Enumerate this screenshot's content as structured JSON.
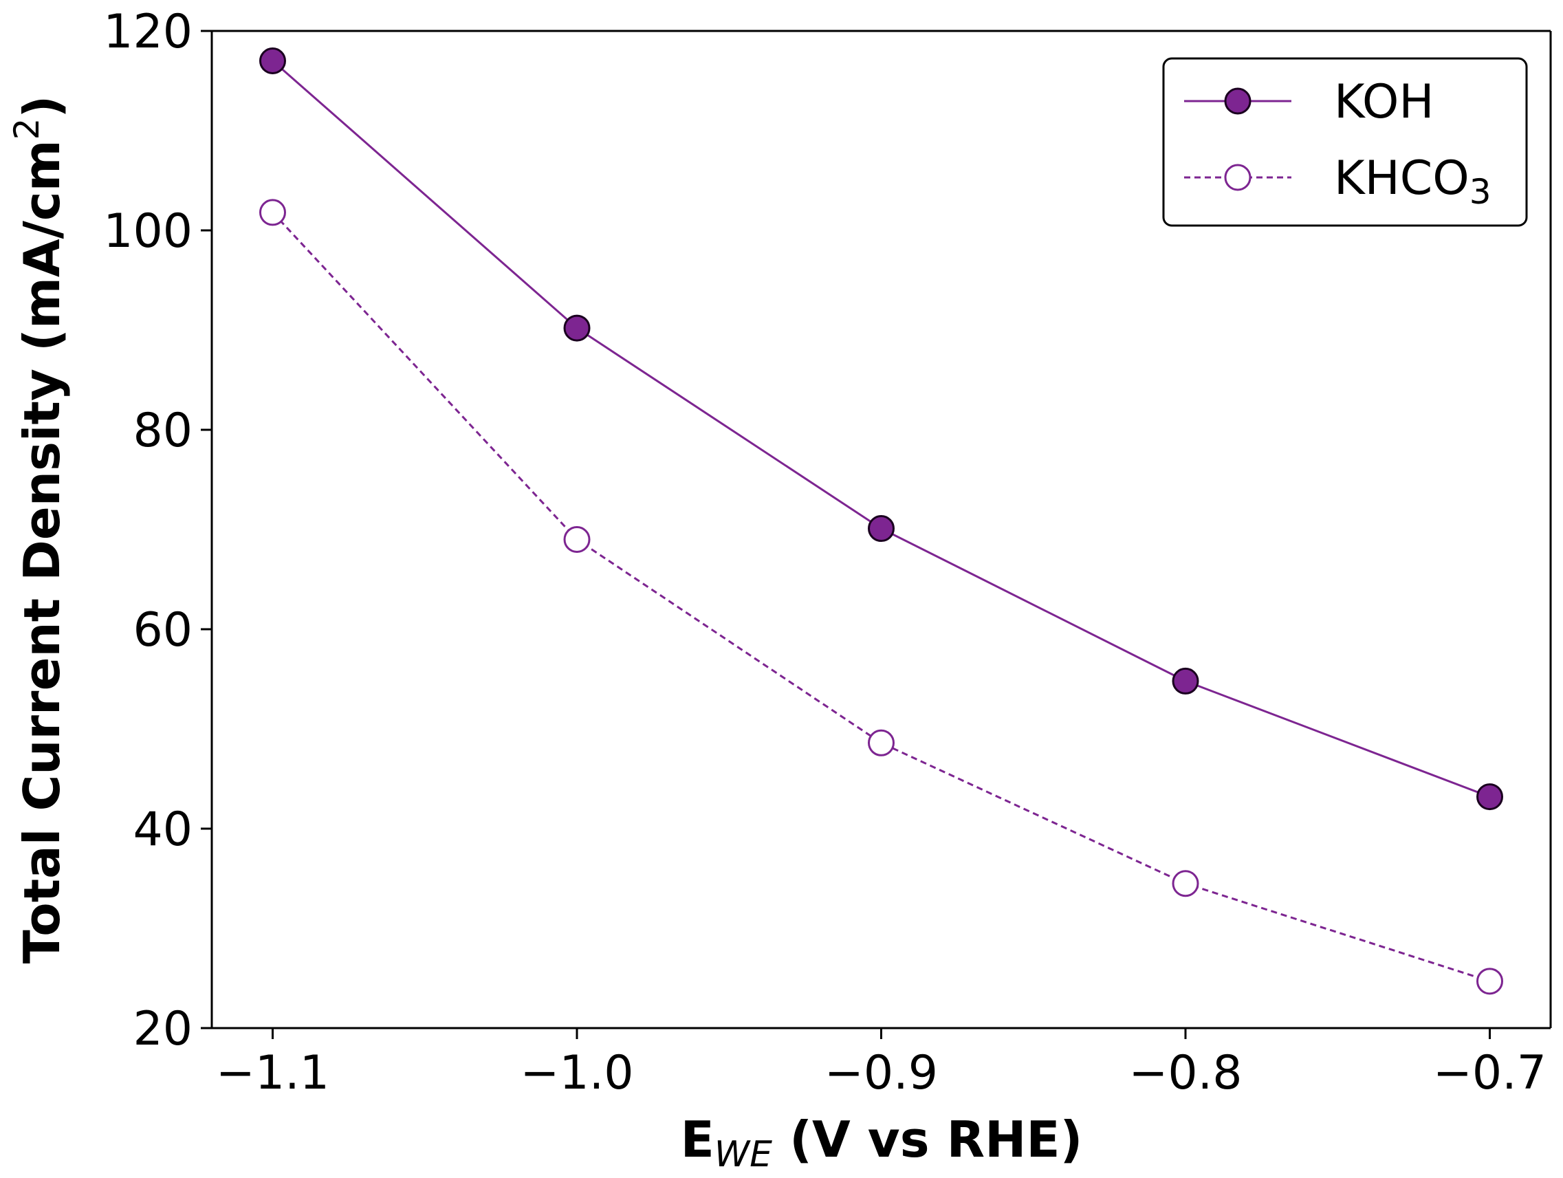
{
  "colors": {
    "series": "#7d2591",
    "axis": "#000000",
    "background": "#ffffff"
  },
  "chart_data": {
    "type": "line",
    "title": "",
    "xlabel": {
      "main": "E",
      "subscript": "WE",
      "rest": " (V vs RHE)"
    },
    "ylabel": {
      "main": "Total Current Density (mA/cm",
      "superscript": "2",
      "close": ")"
    },
    "x": [
      -1.1,
      -1.0,
      -0.9,
      -0.8,
      -0.7
    ],
    "xlim": [
      -1.12,
      -0.68
    ],
    "ylim": [
      20,
      120
    ],
    "xticks": [
      -1.1,
      -1.0,
      -0.9,
      -0.8,
      -0.7
    ],
    "xtick_labels": [
      "−1.1",
      "−1.0",
      "−0.9",
      "−0.8",
      "−0.7"
    ],
    "yticks": [
      20,
      40,
      60,
      80,
      100,
      120
    ],
    "ytick_labels": [
      "20",
      "40",
      "60",
      "80",
      "100",
      "120"
    ],
    "grid": false,
    "legend_position": "top-right",
    "series": [
      {
        "name": "KOH",
        "label_main": "KOH",
        "label_sub": "",
        "values": [
          117,
          90.2,
          70.1,
          54.8,
          43.2
        ],
        "line_style": "solid",
        "marker": "filled-circle"
      },
      {
        "name": "KHCO3",
        "label_main": "KHCO",
        "label_sub": "3",
        "values": [
          101.8,
          69,
          48.6,
          34.5,
          24.7
        ],
        "line_style": "dashed",
        "marker": "open-circle"
      }
    ]
  }
}
